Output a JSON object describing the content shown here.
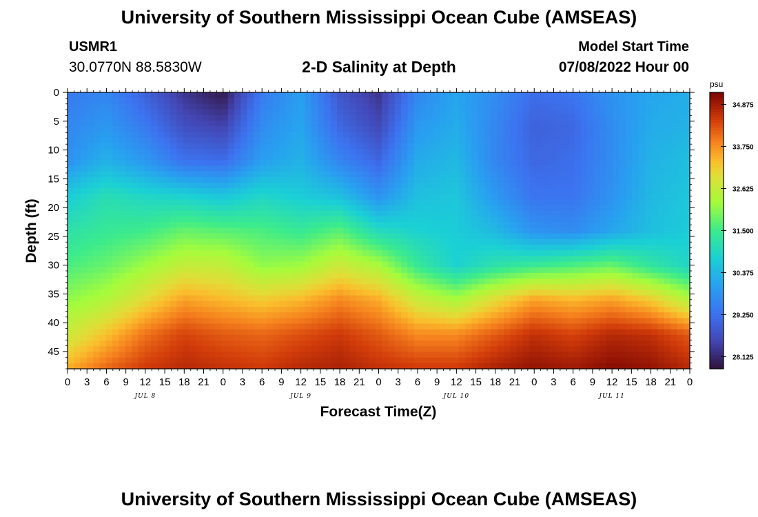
{
  "page": {
    "title": "University of Southern Mississippi Ocean Cube (AMSEAS)",
    "footer_title": "University of Southern Mississippi Ocean Cube (AMSEAS)"
  },
  "station": {
    "id": "USMR1",
    "coords": "30.0770N  88.5830W"
  },
  "model": {
    "label": "Model Start Time",
    "value": "07/08/2022 Hour 00"
  },
  "chart_data": {
    "type": "heatmap",
    "title": "2-D Salinity at Depth",
    "xlabel": "Forecast Time(Z)",
    "ylabel": "Depth (ft)",
    "x_range_hours": [
      0,
      96
    ],
    "x_tick_step_hours": 3,
    "x_tick_labels": [
      "0",
      "3",
      "6",
      "9",
      "12",
      "15",
      "18",
      "21",
      "0",
      "3",
      "6",
      "9",
      "12",
      "15",
      "18",
      "21",
      "0",
      "3",
      "6",
      "9",
      "12",
      "15",
      "18",
      "21",
      "0",
      "3",
      "6",
      "9",
      "12",
      "15",
      "18",
      "21",
      "0"
    ],
    "day_labels": [
      {
        "label": "JUL 8",
        "hour": 12
      },
      {
        "label": "JUL 9",
        "hour": 36
      },
      {
        "label": "JUL 10",
        "hour": 60
      },
      {
        "label": "JUL 11",
        "hour": 84
      }
    ],
    "y_range_ft": [
      0,
      48
    ],
    "y_ticks": [
      0,
      5,
      10,
      15,
      20,
      25,
      30,
      35,
      40,
      45
    ],
    "colorbar": {
      "unit": "psu",
      "min": 27.8,
      "max": 35.2,
      "tick_values": [
        28.125,
        29.25,
        30.375,
        31.5,
        32.625,
        33.75,
        34.875
      ],
      "tick_labels": [
        "28.125",
        "29.250",
        "30.375",
        "31.500",
        "32.625",
        "33.750",
        "34.875"
      ]
    },
    "grid_hours": [
      0,
      6,
      12,
      18,
      24,
      30,
      36,
      42,
      48,
      54,
      60,
      66,
      72,
      78,
      84,
      90,
      96
    ],
    "grid_depths_ft": [
      0,
      6,
      12,
      18,
      24,
      30,
      36,
      42,
      48
    ],
    "salinity_psu": [
      [
        29.4,
        29.6,
        29.0,
        28.3,
        27.9,
        29.4,
        30.0,
        28.8,
        28.3,
        29.6,
        30.1,
        29.7,
        29.2,
        29.3,
        29.8,
        30.1,
        30.2
      ],
      [
        29.6,
        29.9,
        29.4,
        28.7,
        28.5,
        29.7,
        30.1,
        29.1,
        28.6,
        29.9,
        30.2,
        29.6,
        29.0,
        29.1,
        29.7,
        30.2,
        30.3
      ],
      [
        29.8,
        30.3,
        29.9,
        29.3,
        29.2,
        30.0,
        30.3,
        29.6,
        29.1,
        30.2,
        30.4,
        29.6,
        29.1,
        29.2,
        29.7,
        30.3,
        30.5
      ],
      [
        30.7,
        31.1,
        30.9,
        30.8,
        30.6,
        30.9,
        30.7,
        30.5,
        29.8,
        30.5,
        30.6,
        29.9,
        29.3,
        29.3,
        29.8,
        30.4,
        30.6
      ],
      [
        31.2,
        31.4,
        31.5,
        31.8,
        31.7,
        31.6,
        31.4,
        31.7,
        31.0,
        30.8,
        30.7,
        30.4,
        29.8,
        29.7,
        30.1,
        30.5,
        30.7
      ],
      [
        31.6,
        31.8,
        32.2,
        32.6,
        32.6,
        32.1,
        32.2,
        32.7,
        32.3,
        31.4,
        30.8,
        31.2,
        31.4,
        31.6,
        31.8,
        31.3,
        30.9
      ],
      [
        32.1,
        32.4,
        33.0,
        33.6,
        33.4,
        33.2,
        33.4,
        33.8,
        33.5,
        32.7,
        32.3,
        33.0,
        33.6,
        33.4,
        33.6,
        33.2,
        32.4
      ],
      [
        32.7,
        33.3,
        34.0,
        34.4,
        34.2,
        34.1,
        34.3,
        34.5,
        34.2,
        33.8,
        33.8,
        34.2,
        34.6,
        34.4,
        34.7,
        34.6,
        34.2
      ],
      [
        33.5,
        34.1,
        34.5,
        34.7,
        34.6,
        34.5,
        34.7,
        34.8,
        34.6,
        34.5,
        34.5,
        34.8,
        35.0,
        34.9,
        35.1,
        35.0,
        34.7
      ]
    ]
  }
}
